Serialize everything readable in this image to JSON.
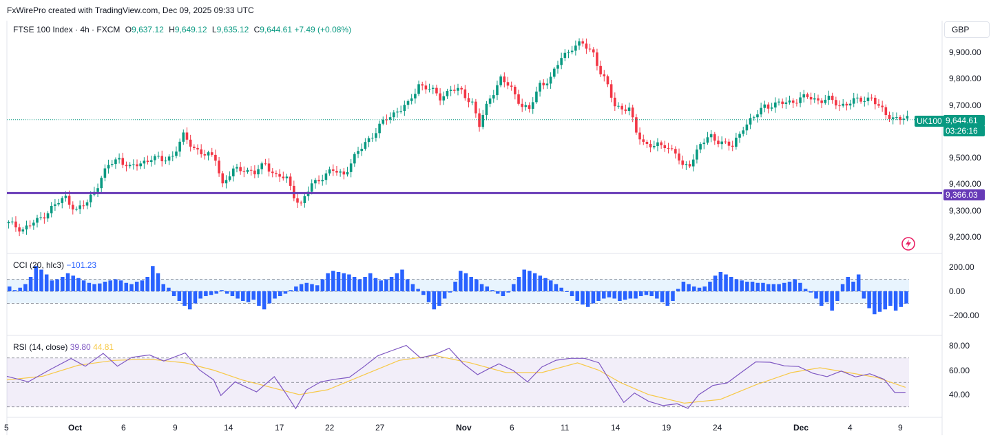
{
  "header": {
    "attribution": "FxWirePro created with TradingView.com, Dec 09, 2025 09:33 UTC"
  },
  "legend": {
    "symbol": "FTSE 100 Index · 4h · FXCM",
    "open_label": "O",
    "open": "9,637.12",
    "high_label": "H",
    "high": "9,649.12",
    "low_label": "L",
    "low": "9,635.12",
    "close_label": "C",
    "close": "9,644.61",
    "change": "+7.49 (+0.08%)"
  },
  "currency_button": "GBP",
  "price_axis": [
    "9,900.00",
    "9,800.00",
    "9,700.00",
    "9,600.00",
    "9,500.00",
    "9,400.00",
    "9,300.00",
    "9,200.00"
  ],
  "symbol_badge": "UK100",
  "last_price": "9,644.61",
  "countdown": "03:26:16",
  "level_line": {
    "price": 9366.03,
    "label": "9,366.03",
    "color": "#673ab7"
  },
  "cci": {
    "label": "CCI (20, hlc3)",
    "value": "−101.23",
    "axis": [
      "200.00",
      "0.00",
      "−200.00"
    ]
  },
  "rsi": {
    "label": "RSI (14, close)",
    "value": "39.80",
    "ma_value": "44.81",
    "axis": [
      "80.00",
      "60.00",
      "40.00"
    ]
  },
  "time_axis": [
    {
      "t": "5",
      "bold": false
    },
    {
      "t": "Oct",
      "bold": true
    },
    {
      "t": "6",
      "bold": false
    },
    {
      "t": "9",
      "bold": false
    },
    {
      "t": "14",
      "bold": false
    },
    {
      "t": "17",
      "bold": false
    },
    {
      "t": "22",
      "bold": false
    },
    {
      "t": "27",
      "bold": false
    },
    {
      "t": "Nov",
      "bold": true
    },
    {
      "t": "6",
      "bold": false
    },
    {
      "t": "11",
      "bold": false
    },
    {
      "t": "14",
      "bold": false
    },
    {
      "t": "19",
      "bold": false
    },
    {
      "t": "24",
      "bold": false
    },
    {
      "t": "Dec",
      "bold": true
    },
    {
      "t": "4",
      "bold": false
    },
    {
      "t": "9",
      "bold": false
    }
  ],
  "colors": {
    "up": "#089981",
    "down": "#f23645",
    "cci": "#2962ff",
    "rsi": "#7e57c2",
    "rsi_ma": "#f7c948"
  },
  "price_path": [
    [
      0,
      9250
    ],
    [
      4,
      9230
    ],
    [
      8,
      9260
    ],
    [
      12,
      9310
    ],
    [
      16,
      9350
    ],
    [
      19,
      9300
    ],
    [
      22,
      9330
    ],
    [
      25,
      9400
    ],
    [
      28,
      9470
    ],
    [
      31,
      9500
    ],
    [
      34,
      9460
    ],
    [
      37,
      9480
    ],
    [
      40,
      9500
    ],
    [
      43,
      9490
    ],
    [
      46,
      9510
    ],
    [
      49,
      9580
    ],
    [
      52,
      9540
    ],
    [
      55,
      9510
    ],
    [
      58,
      9500
    ],
    [
      60,
      9400
    ],
    [
      63,
      9450
    ],
    [
      66,
      9460
    ],
    [
      69,
      9440
    ],
    [
      72,
      9480
    ],
    [
      75,
      9430
    ],
    [
      78,
      9420
    ],
    [
      80,
      9360
    ],
    [
      82,
      9320
    ],
    [
      85,
      9400
    ],
    [
      88,
      9430
    ],
    [
      91,
      9450
    ],
    [
      94,
      9440
    ],
    [
      97,
      9500
    ],
    [
      100,
      9560
    ],
    [
      103,
      9600
    ],
    [
      106,
      9650
    ],
    [
      109,
      9680
    ],
    [
      112,
      9700
    ],
    [
      115,
      9780
    ],
    [
      118,
      9760
    ],
    [
      121,
      9730
    ],
    [
      124,
      9760
    ],
    [
      127,
      9750
    ],
    [
      130,
      9710
    ],
    [
      132,
      9620
    ],
    [
      135,
      9730
    ],
    [
      138,
      9800
    ],
    [
      141,
      9760
    ],
    [
      144,
      9700
    ],
    [
      146,
      9680
    ],
    [
      149,
      9780
    ],
    [
      152,
      9800
    ],
    [
      155,
      9880
    ],
    [
      158,
      9920
    ],
    [
      161,
      9930
    ],
    [
      164,
      9900
    ],
    [
      166,
      9820
    ],
    [
      168,
      9770
    ],
    [
      170,
      9700
    ],
    [
      172,
      9690
    ],
    [
      174,
      9680
    ],
    [
      176,
      9600
    ],
    [
      178,
      9560
    ],
    [
      181,
      9540
    ],
    [
      184,
      9550
    ],
    [
      187,
      9520
    ],
    [
      189,
      9460
    ],
    [
      191,
      9480
    ],
    [
      194,
      9550
    ],
    [
      197,
      9580
    ],
    [
      200,
      9560
    ],
    [
      203,
      9540
    ],
    [
      206,
      9620
    ],
    [
      209,
      9650
    ],
    [
      212,
      9700
    ],
    [
      215,
      9700
    ],
    [
      218,
      9710
    ],
    [
      221,
      9720
    ],
    [
      224,
      9730
    ],
    [
      227,
      9720
    ],
    [
      230,
      9720
    ],
    [
      233,
      9700
    ],
    [
      236,
      9710
    ],
    [
      239,
      9720
    ],
    [
      242,
      9730
    ],
    [
      244,
      9690
    ],
    [
      246,
      9665
    ],
    [
      248,
      9655
    ],
    [
      250,
      9648
    ],
    [
      252,
      9645
    ]
  ],
  "cci_bars": [
    40,
    10,
    30,
    60,
    120,
    210,
    180,
    140,
    90,
    100,
    120,
    150,
    130,
    110,
    90,
    70,
    60,
    65,
    80,
    90,
    100,
    90,
    70,
    60,
    80,
    90,
    120,
    210,
    150,
    60,
    30,
    -40,
    -80,
    -120,
    -150,
    -100,
    -60,
    -40,
    -30,
    -20,
    10,
    -20,
    -40,
    -60,
    -80,
    -90,
    -70,
    -120,
    -150,
    -100,
    -60,
    -40,
    -20,
    10,
    40,
    60,
    70,
    60,
    50,
    100,
    150,
    170,
    160,
    150,
    140,
    120,
    100,
    120,
    150,
    110,
    90,
    100,
    120,
    150,
    180,
    100,
    60,
    20,
    -30,
    -90,
    -150,
    -120,
    -60,
    -10,
    80,
    170,
    150,
    120,
    100,
    60,
    40,
    10,
    -20,
    -40,
    -10,
    60,
    120,
    180,
    170,
    150,
    130,
    110,
    90,
    60,
    30,
    0,
    -40,
    -80,
    -110,
    -130,
    -100,
    -80,
    -60,
    -50,
    -60,
    -80,
    -70,
    -60,
    -60,
    -40,
    -30,
    -40,
    -60,
    -90,
    -120,
    -80,
    20,
    80,
    60,
    40,
    30,
    40,
    80,
    130,
    160,
    140,
    120,
    100,
    90,
    80,
    80,
    70,
    70,
    60,
    60,
    60,
    70,
    80,
    100,
    70,
    20,
    -10,
    -60,
    -120,
    -90,
    -160,
    -80,
    60,
    120,
    80,
    140,
    -60,
    -140,
    -190,
    -170,
    -150,
    -120,
    -160,
    -130,
    -101
  ],
  "rsi_path": [
    [
      0,
      55
    ],
    [
      6,
      48
    ],
    [
      12,
      60
    ],
    [
      18,
      72
    ],
    [
      22,
      64
    ],
    [
      27,
      75
    ],
    [
      31,
      62
    ],
    [
      35,
      68
    ],
    [
      40,
      70
    ],
    [
      44,
      66
    ],
    [
      50,
      72
    ],
    [
      54,
      58
    ],
    [
      58,
      52
    ],
    [
      60,
      38
    ],
    [
      64,
      48
    ],
    [
      70,
      42
    ],
    [
      75,
      55
    ],
    [
      78,
      40
    ],
    [
      81,
      31
    ],
    [
      84,
      42
    ],
    [
      88,
      48
    ],
    [
      92,
      52
    ],
    [
      96,
      56
    ],
    [
      100,
      65
    ],
    [
      104,
      72
    ],
    [
      108,
      74
    ],
    [
      112,
      78
    ],
    [
      116,
      70
    ],
    [
      120,
      75
    ],
    [
      124,
      80
    ],
    [
      128,
      65
    ],
    [
      132,
      54
    ],
    [
      135,
      62
    ],
    [
      138,
      66
    ],
    [
      142,
      58
    ],
    [
      146,
      48
    ],
    [
      150,
      62
    ],
    [
      154,
      70
    ],
    [
      158,
      72
    ],
    [
      162,
      70
    ],
    [
      166,
      64
    ],
    [
      170,
      45
    ],
    [
      173,
      36
    ],
    [
      176,
      40
    ],
    [
      180,
      32
    ],
    [
      184,
      30
    ],
    [
      188,
      34
    ],
    [
      191,
      29
    ],
    [
      194,
      38
    ],
    [
      198,
      48
    ],
    [
      202,
      52
    ],
    [
      206,
      60
    ],
    [
      210,
      66
    ],
    [
      214,
      64
    ],
    [
      218,
      62
    ],
    [
      222,
      64
    ],
    [
      226,
      60
    ],
    [
      230,
      56
    ],
    [
      234,
      58
    ],
    [
      238,
      52
    ],
    [
      242,
      56
    ],
    [
      246,
      54
    ],
    [
      249,
      42
    ],
    [
      252,
      40
    ]
  ],
  "rsi_ma_path": [
    [
      0,
      52
    ],
    [
      10,
      55
    ],
    [
      20,
      64
    ],
    [
      30,
      68
    ],
    [
      40,
      69
    ],
    [
      50,
      66
    ],
    [
      58,
      60
    ],
    [
      66,
      52
    ],
    [
      74,
      46
    ],
    [
      82,
      40
    ],
    [
      90,
      44
    ],
    [
      100,
      56
    ],
    [
      110,
      68
    ],
    [
      120,
      72
    ],
    [
      130,
      66
    ],
    [
      140,
      58
    ],
    [
      150,
      58
    ],
    [
      160,
      66
    ],
    [
      166,
      60
    ],
    [
      172,
      50
    ],
    [
      180,
      40
    ],
    [
      190,
      33
    ],
    [
      200,
      36
    ],
    [
      210,
      48
    ],
    [
      220,
      58
    ],
    [
      228,
      62
    ],
    [
      236,
      58
    ],
    [
      244,
      54
    ],
    [
      252,
      46
    ]
  ]
}
